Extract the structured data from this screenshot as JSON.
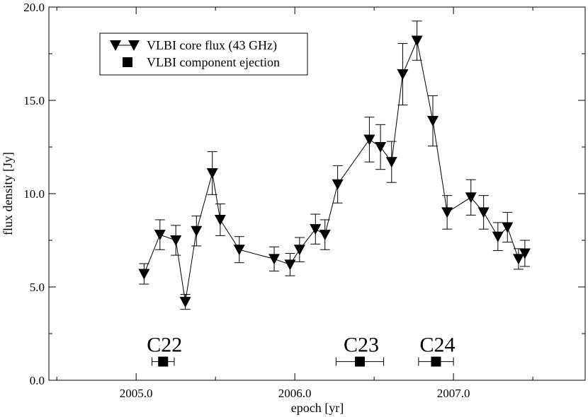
{
  "chart_data": {
    "type": "scatter",
    "title": "",
    "xlabel": "epoch [yr]",
    "ylabel": "flux density [Jy]",
    "xlim": [
      2004.45,
      2007.83
    ],
    "ylim": [
      0.0,
      20.0
    ],
    "xticks": [
      2005.0,
      2006.0,
      2007.0
    ],
    "xtick_labels": [
      "2005.0",
      "2006.0",
      "2007.0"
    ],
    "yticks": [
      0.0,
      5.0,
      10.0,
      15.0,
      20.0
    ],
    "ytick_labels": [
      "0.0",
      "5.0",
      "10.0",
      "15.0",
      "20.0"
    ],
    "legend_position": "top-left",
    "series": [
      {
        "name": "VLBI core flux (43 GHz)",
        "marker": "triangle-down",
        "line": true,
        "color": "#000000",
        "points": [
          {
            "x": 2005.05,
            "y": 5.7,
            "err": 0.55
          },
          {
            "x": 2005.15,
            "y": 7.8,
            "err": 0.8
          },
          {
            "x": 2005.25,
            "y": 7.5,
            "err": 0.8
          },
          {
            "x": 2005.31,
            "y": 4.2,
            "err": 0.4
          },
          {
            "x": 2005.38,
            "y": 8.0,
            "err": 0.8
          },
          {
            "x": 2005.48,
            "y": 11.1,
            "err": 1.15
          },
          {
            "x": 2005.53,
            "y": 8.6,
            "err": 0.85
          },
          {
            "x": 2005.65,
            "y": 7.0,
            "err": 0.7
          },
          {
            "x": 2005.87,
            "y": 6.5,
            "err": 0.65
          },
          {
            "x": 2005.97,
            "y": 6.2,
            "err": 0.6
          },
          {
            "x": 2006.03,
            "y": 7.0,
            "err": 0.65
          },
          {
            "x": 2006.13,
            "y": 8.1,
            "err": 0.8
          },
          {
            "x": 2006.19,
            "y": 7.8,
            "err": 0.8
          },
          {
            "x": 2006.27,
            "y": 10.5,
            "err": 1.0
          },
          {
            "x": 2006.47,
            "y": 12.9,
            "err": 1.2
          },
          {
            "x": 2006.54,
            "y": 12.5,
            "err": 1.2
          },
          {
            "x": 2006.61,
            "y": 11.7,
            "err": 1.1
          },
          {
            "x": 2006.68,
            "y": 16.4,
            "err": 1.65
          },
          {
            "x": 2006.77,
            "y": 18.2,
            "err": 1.05
          },
          {
            "x": 2006.87,
            "y": 13.9,
            "err": 1.35
          },
          {
            "x": 2006.96,
            "y": 9.0,
            "err": 0.9
          },
          {
            "x": 2007.11,
            "y": 9.8,
            "err": 0.95
          },
          {
            "x": 2007.19,
            "y": 9.0,
            "err": 0.9
          },
          {
            "x": 2007.28,
            "y": 7.7,
            "err": 0.75
          },
          {
            "x": 2007.34,
            "y": 8.2,
            "err": 0.8
          },
          {
            "x": 2007.41,
            "y": 6.5,
            "err": 0.55
          },
          {
            "x": 2007.45,
            "y": 6.8,
            "err": 0.7
          }
        ]
      },
      {
        "name": "VLBI component ejection",
        "marker": "square",
        "line": false,
        "color": "#000000",
        "points": [
          {
            "label": "C22",
            "x": 2005.17,
            "y": 1.0,
            "xerr": 0.07
          },
          {
            "label": "C23",
            "x": 2006.41,
            "y": 1.0,
            "xerr": 0.15
          },
          {
            "label": "C24",
            "x": 2006.89,
            "y": 1.0,
            "xerr": 0.11
          }
        ]
      }
    ]
  }
}
